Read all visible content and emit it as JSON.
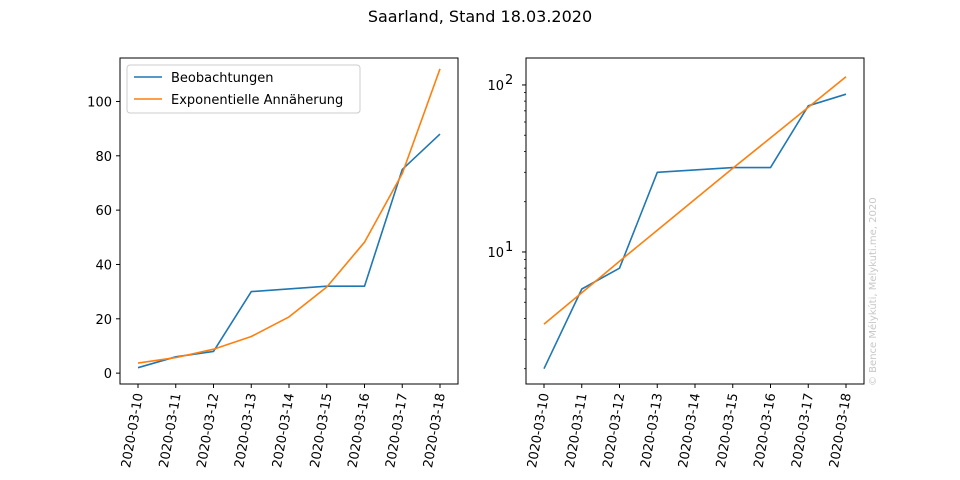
{
  "figure": {
    "title": "Saarland, Stand 18.03.2020",
    "credit": "© Bence Mélykúti, Melykuti.me, 2020"
  },
  "chart_data": [
    {
      "type": "line",
      "yscale": "linear",
      "x": [
        "2020-03-10",
        "2020-03-11",
        "2020-03-12",
        "2020-03-13",
        "2020-03-14",
        "2020-03-15",
        "2020-03-16",
        "2020-03-17",
        "2020-03-18"
      ],
      "ylim": [
        -4,
        116
      ],
      "yticks": [
        0,
        20,
        40,
        60,
        80,
        100
      ],
      "legend_position": "upper-left",
      "series": [
        {
          "name": "Beobachtungen",
          "color": "#1f77b4",
          "values": [
            2,
            6,
            8,
            30,
            null,
            32,
            32,
            75,
            88
          ]
        },
        {
          "name": "Exponentielle Annäherung",
          "color": "#ff7f0e",
          "values": [
            3.7,
            5.7,
            8.8,
            13.5,
            20.7,
            31.7,
            48.2,
            73.5,
            112
          ]
        }
      ]
    },
    {
      "type": "line",
      "yscale": "log",
      "x": [
        "2020-03-10",
        "2020-03-11",
        "2020-03-12",
        "2020-03-13",
        "2020-03-14",
        "2020-03-15",
        "2020-03-16",
        "2020-03-17",
        "2020-03-18"
      ],
      "ylim": [
        1.62,
        145
      ],
      "yticks": [
        10,
        100
      ],
      "ytick_labels": [
        [
          "10",
          "1"
        ],
        [
          "10",
          "2"
        ]
      ],
      "series": [
        {
          "name": "Beobachtungen",
          "color": "#1f77b4",
          "values": [
            2,
            6,
            8,
            30,
            null,
            32,
            32,
            75,
            88
          ]
        },
        {
          "name": "Exponentielle Annäherung",
          "color": "#ff7f0e",
          "values": [
            3.7,
            5.7,
            8.8,
            13.5,
            20.7,
            31.7,
            48.2,
            73.5,
            112
          ]
        }
      ]
    }
  ]
}
